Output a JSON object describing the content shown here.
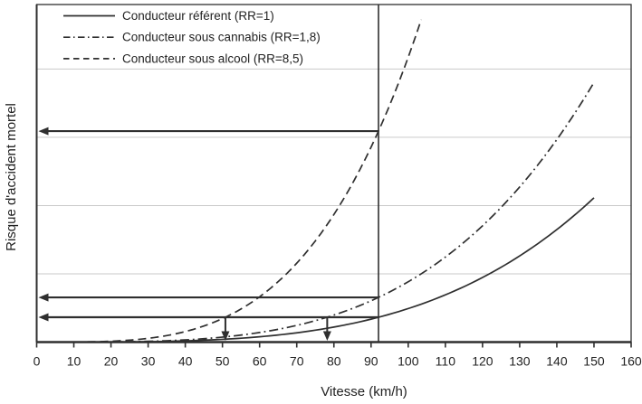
{
  "chart_data": {
    "type": "line",
    "title": "",
    "xlabel": "Vitesse (km/h)",
    "ylabel": "Risque d'accident mortel",
    "x_range": [
      0,
      160
    ],
    "x_tick_step": 10,
    "x_tick_labels": [
      "0",
      "10",
      "20",
      "30",
      "40",
      "50",
      "60",
      "70",
      "80",
      "90",
      "100",
      "110",
      "120",
      "130",
      "140",
      "150",
      "160"
    ],
    "y_axis_has_tick_labels": false,
    "y_range_risk": [
      0,
      13.6
    ],
    "y_gridlines_risk": [
      2.75,
      5.5,
      8.25,
      11.0
    ],
    "grid": "horizontal-only",
    "legend_position": "top-left-inside",
    "risk_model": {
      "formula": "risk = RR * (v / 92)^3.6",
      "reference_speed_kmh": 92,
      "exponent": 3.6
    },
    "series": [
      {
        "name": "Conducteur référent (RR=1)",
        "rr": 1.0,
        "line_style": "solid",
        "v_max": 150,
        "points_v_risk": [
          [
            0,
            0
          ],
          [
            10,
            0.0003
          ],
          [
            20,
            0.004
          ],
          [
            30,
            0.018
          ],
          [
            40,
            0.05
          ],
          [
            50,
            0.11
          ],
          [
            60,
            0.21
          ],
          [
            70,
            0.37
          ],
          [
            80,
            0.6
          ],
          [
            90,
            0.92
          ],
          [
            92,
            1.0
          ],
          [
            100,
            1.35
          ],
          [
            110,
            1.9
          ],
          [
            120,
            2.6
          ],
          [
            130,
            3.47
          ],
          [
            140,
            4.54
          ],
          [
            150,
            5.81
          ]
        ]
      },
      {
        "name": "Conducteur sous cannabis (RR=1,8)",
        "rr": 1.8,
        "line_style": "dash-dot",
        "v_max": 150,
        "points_v_risk": [
          [
            0,
            0
          ],
          [
            10,
            0.0006
          ],
          [
            20,
            0.007
          ],
          [
            30,
            0.032
          ],
          [
            40,
            0.09
          ],
          [
            50,
            0.2
          ],
          [
            60,
            0.39
          ],
          [
            70,
            0.67
          ],
          [
            80,
            1.09
          ],
          [
            90,
            1.66
          ],
          [
            92,
            1.8
          ],
          [
            100,
            2.43
          ],
          [
            110,
            3.43
          ],
          [
            120,
            4.69
          ],
          [
            130,
            6.25
          ],
          [
            140,
            8.16
          ],
          [
            150,
            10.46
          ]
        ]
      },
      {
        "name": "Conducteur sous alcool (RR=8,5)",
        "rr": 8.5,
        "line_style": "dashed",
        "v_max": 103.5,
        "points_v_risk": [
          [
            0,
            0
          ],
          [
            10,
            0.003
          ],
          [
            20,
            0.035
          ],
          [
            30,
            0.15
          ],
          [
            40,
            0.42
          ],
          [
            50,
            0.94
          ],
          [
            60,
            1.83
          ],
          [
            70,
            3.18
          ],
          [
            80,
            5.14
          ],
          [
            90,
            7.85
          ],
          [
            92,
            8.5
          ],
          [
            100,
            11.47
          ],
          [
            103.5,
            13.0
          ]
        ]
      }
    ],
    "annotations": {
      "vertical_line_v": 92,
      "horizontal_arrows": [
        {
          "risk": 8.5,
          "from_v": 92
        },
        {
          "risk": 1.8,
          "from_v": 92
        },
        {
          "risk": 1.0,
          "from_v": 92
        }
      ],
      "down_arrows": [
        {
          "v": 50.8,
          "from_risk": 1.0
        },
        {
          "v": 78.2,
          "from_risk": 1.0
        }
      ]
    },
    "colors": {
      "line": "#2f2f2f",
      "grid": "#c9c9c9",
      "text": "#222222",
      "background": "#ffffff"
    }
  }
}
